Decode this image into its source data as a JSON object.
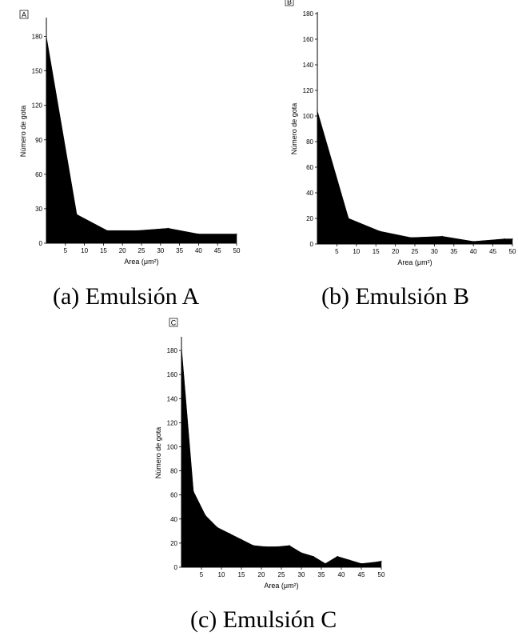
{
  "captions": [
    "(a) Emulsión A",
    "(b) Emulsión B",
    "(c) Emulsión C"
  ],
  "chart_data": [
    {
      "type": "area",
      "panel_label": "A",
      "xlabel": "Area (μm²)",
      "ylabel": "Número de gota",
      "xlim": [
        0,
        50
      ],
      "ylim": [
        0,
        195
      ],
      "xticks": [
        5,
        10,
        15,
        20,
        25,
        30,
        35,
        40,
        45,
        50
      ],
      "yticks": [
        0,
        30,
        60,
        90,
        120,
        150,
        180
      ],
      "grid": false,
      "x": [
        0,
        8,
        16,
        24,
        32,
        40,
        50
      ],
      "values": [
        180,
        25,
        11,
        11,
        13,
        8,
        8
      ],
      "fill_color": "#000000"
    },
    {
      "type": "area",
      "panel_label": "B",
      "xlabel": "Area (μm²)",
      "ylabel": "Número de gota",
      "xlim": [
        0,
        50
      ],
      "ylim": [
        0,
        180
      ],
      "xticks": [
        5,
        10,
        15,
        20,
        25,
        30,
        35,
        40,
        45,
        50
      ],
      "yticks": [
        0,
        20,
        40,
        60,
        80,
        100,
        120,
        140,
        160,
        180
      ],
      "grid": false,
      "x": [
        0,
        8,
        16,
        24,
        32,
        40,
        48,
        50
      ],
      "values": [
        104,
        20,
        10,
        5,
        6,
        2,
        4,
        4
      ],
      "fill_color": "#000000"
    },
    {
      "type": "area",
      "panel_label": "C",
      "xlabel": "Area (μm²)",
      "ylabel": "Número de gota",
      "xlim": [
        0,
        50
      ],
      "ylim": [
        0,
        190
      ],
      "xticks": [
        5,
        10,
        15,
        20,
        25,
        30,
        35,
        40,
        45,
        50
      ],
      "yticks": [
        0,
        20,
        40,
        60,
        80,
        100,
        120,
        140,
        160,
        180
      ],
      "grid": false,
      "x": [
        0,
        3,
        6,
        9,
        12,
        15,
        18,
        21,
        24,
        27,
        30,
        33,
        36,
        39,
        42,
        45,
        48,
        50
      ],
      "values": [
        183,
        63,
        43,
        33,
        28,
        23,
        18,
        17,
        17,
        18,
        12,
        9,
        3,
        9,
        6,
        3,
        4,
        5
      ],
      "fill_color": "#000000"
    }
  ]
}
